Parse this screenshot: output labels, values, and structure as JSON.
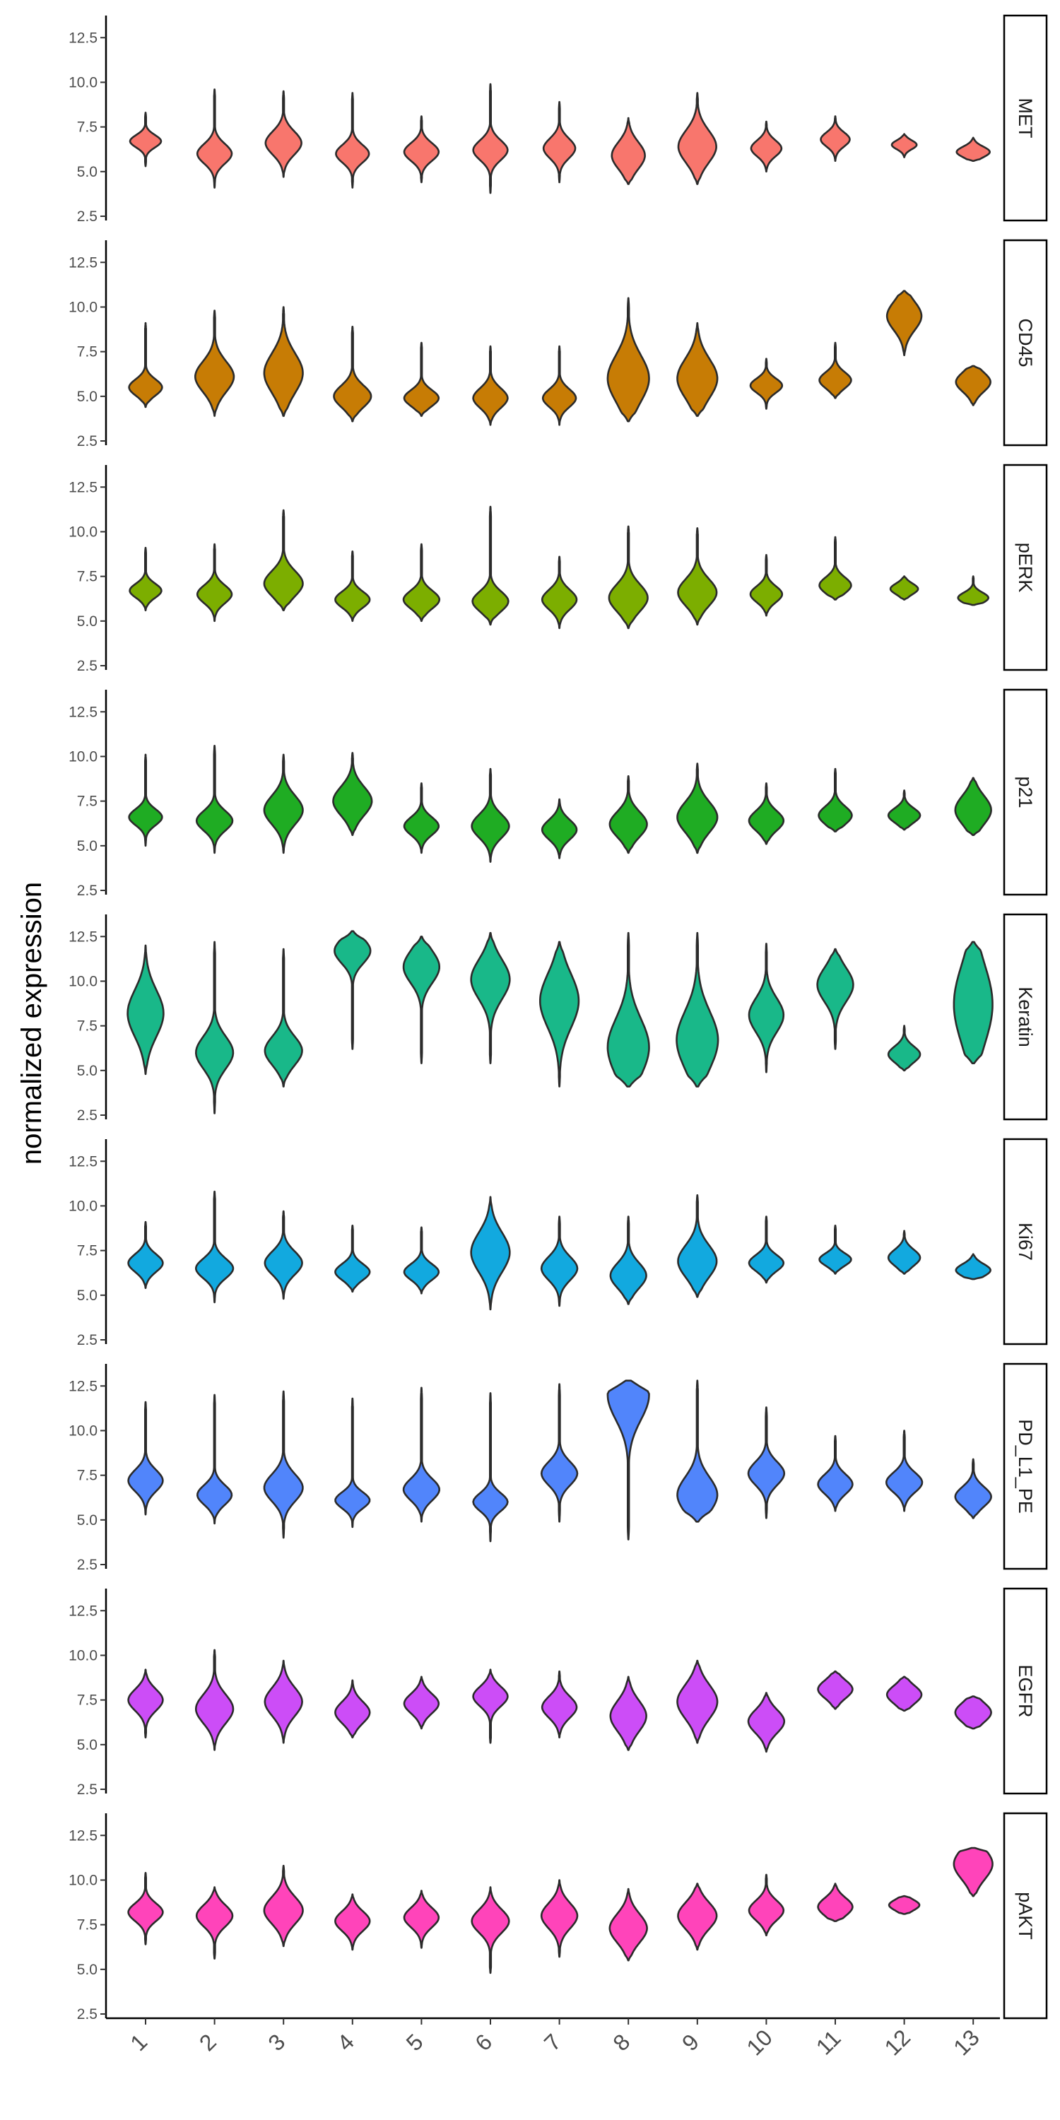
{
  "chart_data": {
    "type": "violin",
    "ylabel": "normalized expression",
    "ylim": [
      2.5,
      13.5
    ],
    "y_ticks": [
      "2.5",
      "5.0",
      "7.5",
      "10.0",
      "12.5"
    ],
    "categories": [
      "1",
      "2",
      "3",
      "4",
      "5",
      "6",
      "7",
      "8",
      "9",
      "10",
      "11",
      "12",
      "13"
    ],
    "panels": [
      {
        "name": "MET",
        "color": "#F8766D",
        "violins": [
          {
            "min": 5.3,
            "max": 8.3,
            "peak": 6.7,
            "width": 0.45,
            "spread": 0.35
          },
          {
            "min": 4.1,
            "max": 9.6,
            "peak": 6.0,
            "width": 0.5,
            "spread": 0.55
          },
          {
            "min": 4.7,
            "max": 9.5,
            "peak": 6.6,
            "width": 0.52,
            "spread": 0.65
          },
          {
            "min": 4.1,
            "max": 9.4,
            "peak": 6.0,
            "width": 0.48,
            "spread": 0.5
          },
          {
            "min": 4.4,
            "max": 8.1,
            "peak": 6.1,
            "width": 0.5,
            "spread": 0.5
          },
          {
            "min": 3.8,
            "max": 9.9,
            "peak": 6.2,
            "width": 0.5,
            "spread": 0.55
          },
          {
            "min": 4.4,
            "max": 8.9,
            "peak": 6.3,
            "width": 0.46,
            "spread": 0.55
          },
          {
            "min": 4.3,
            "max": 8.0,
            "peak": 5.9,
            "width": 0.48,
            "spread": 0.75
          },
          {
            "min": 4.3,
            "max": 9.4,
            "peak": 6.4,
            "width": 0.55,
            "spread": 0.9
          },
          {
            "min": 5.0,
            "max": 7.8,
            "peak": 6.3,
            "width": 0.44,
            "spread": 0.45
          },
          {
            "min": 5.6,
            "max": 8.1,
            "peak": 6.8,
            "width": 0.42,
            "spread": 0.4
          },
          {
            "min": 5.8,
            "max": 7.1,
            "peak": 6.5,
            "width": 0.36,
            "spread": 0.25
          },
          {
            "min": 5.6,
            "max": 6.9,
            "peak": 6.1,
            "width": 0.48,
            "spread": 0.3
          }
        ]
      },
      {
        "name": "CD45",
        "color": "#C77C05",
        "violins": [
          {
            "min": 4.4,
            "max": 9.1,
            "peak": 5.5,
            "width": 0.48,
            "spread": 0.45
          },
          {
            "min": 3.9,
            "max": 9.8,
            "peak": 6.1,
            "width": 0.56,
            "spread": 0.85
          },
          {
            "min": 3.9,
            "max": 10.0,
            "peak": 6.3,
            "width": 0.56,
            "spread": 1.1
          },
          {
            "min": 3.6,
            "max": 8.9,
            "peak": 5.0,
            "width": 0.54,
            "spread": 0.6
          },
          {
            "min": 3.9,
            "max": 8.0,
            "peak": 4.9,
            "width": 0.5,
            "spread": 0.45
          },
          {
            "min": 3.4,
            "max": 7.8,
            "peak": 4.9,
            "width": 0.5,
            "spread": 0.55
          },
          {
            "min": 3.4,
            "max": 7.8,
            "peak": 4.9,
            "width": 0.48,
            "spread": 0.5
          },
          {
            "min": 3.6,
            "max": 10.5,
            "peak": 6.0,
            "width": 0.6,
            "spread": 1.3
          },
          {
            "min": 3.9,
            "max": 9.1,
            "peak": 6.0,
            "width": 0.58,
            "spread": 1.1
          },
          {
            "min": 4.3,
            "max": 7.1,
            "peak": 5.6,
            "width": 0.46,
            "spread": 0.4
          },
          {
            "min": 4.9,
            "max": 8.0,
            "peak": 5.9,
            "width": 0.46,
            "spread": 0.45
          },
          {
            "min": 7.3,
            "max": 10.9,
            "peak": 9.5,
            "width": 0.5,
            "spread": 0.8
          },
          {
            "min": 4.5,
            "max": 6.7,
            "peak": 5.8,
            "width": 0.5,
            "spread": 0.55
          }
        ]
      },
      {
        "name": "pERK",
        "color": "#7CAE00",
        "violins": [
          {
            "min": 5.6,
            "max": 9.1,
            "peak": 6.7,
            "width": 0.46,
            "spread": 0.4
          },
          {
            "min": 5.0,
            "max": 9.3,
            "peak": 6.5,
            "width": 0.5,
            "spread": 0.5
          },
          {
            "min": 5.6,
            "max": 11.2,
            "peak": 7.1,
            "width": 0.56,
            "spread": 0.7
          },
          {
            "min": 5.0,
            "max": 8.9,
            "peak": 6.2,
            "width": 0.5,
            "spread": 0.45
          },
          {
            "min": 5.0,
            "max": 9.3,
            "peak": 6.2,
            "width": 0.52,
            "spread": 0.5
          },
          {
            "min": 4.8,
            "max": 11.4,
            "peak": 6.1,
            "width": 0.52,
            "spread": 0.55
          },
          {
            "min": 4.6,
            "max": 8.6,
            "peak": 6.2,
            "width": 0.5,
            "spread": 0.55
          },
          {
            "min": 4.6,
            "max": 10.3,
            "peak": 6.3,
            "width": 0.56,
            "spread": 0.75
          },
          {
            "min": 4.8,
            "max": 10.2,
            "peak": 6.6,
            "width": 0.56,
            "spread": 0.75
          },
          {
            "min": 5.3,
            "max": 8.7,
            "peak": 6.5,
            "width": 0.46,
            "spread": 0.45
          },
          {
            "min": 6.2,
            "max": 9.7,
            "peak": 7.0,
            "width": 0.46,
            "spread": 0.45
          },
          {
            "min": 6.2,
            "max": 7.5,
            "peak": 6.8,
            "width": 0.4,
            "spread": 0.3
          },
          {
            "min": 5.9,
            "max": 7.5,
            "peak": 6.3,
            "width": 0.44,
            "spread": 0.3
          }
        ]
      },
      {
        "name": "p21",
        "color": "#1FAC23",
        "violins": [
          {
            "min": 5.0,
            "max": 10.1,
            "peak": 6.6,
            "width": 0.48,
            "spread": 0.45
          },
          {
            "min": 4.6,
            "max": 10.6,
            "peak": 6.4,
            "width": 0.52,
            "spread": 0.55
          },
          {
            "min": 4.6,
            "max": 10.1,
            "peak": 7.0,
            "width": 0.56,
            "spread": 0.8
          },
          {
            "min": 5.6,
            "max": 10.2,
            "peak": 7.5,
            "width": 0.56,
            "spread": 0.8
          },
          {
            "min": 4.6,
            "max": 8.5,
            "peak": 6.1,
            "width": 0.5,
            "spread": 0.5
          },
          {
            "min": 4.1,
            "max": 9.3,
            "peak": 6.1,
            "width": 0.54,
            "spread": 0.65
          },
          {
            "min": 4.3,
            "max": 7.6,
            "peak": 5.9,
            "width": 0.5,
            "spread": 0.55
          },
          {
            "min": 4.6,
            "max": 8.9,
            "peak": 6.2,
            "width": 0.54,
            "spread": 0.7
          },
          {
            "min": 4.6,
            "max": 9.6,
            "peak": 6.6,
            "width": 0.58,
            "spread": 0.85
          },
          {
            "min": 5.1,
            "max": 8.5,
            "peak": 6.4,
            "width": 0.5,
            "spread": 0.55
          },
          {
            "min": 5.8,
            "max": 9.3,
            "peak": 6.7,
            "width": 0.48,
            "spread": 0.5
          },
          {
            "min": 5.9,
            "max": 8.1,
            "peak": 6.7,
            "width": 0.46,
            "spread": 0.4
          },
          {
            "min": 5.6,
            "max": 8.8,
            "peak": 7.0,
            "width": 0.52,
            "spread": 0.8
          }
        ]
      },
      {
        "name": "Keratin",
        "color": "#19B889",
        "violins": [
          {
            "min": 4.8,
            "max": 12.0,
            "peak": 8.2,
            "width": 0.52,
            "spread": 1.3
          },
          {
            "min": 2.6,
            "max": 12.2,
            "peak": 6.0,
            "width": 0.54,
            "spread": 0.9
          },
          {
            "min": 4.1,
            "max": 11.8,
            "peak": 6.1,
            "width": 0.54,
            "spread": 0.8
          },
          {
            "min": 6.2,
            "max": 12.8,
            "peak": 11.7,
            "width": 0.52,
            "spread": 0.7
          },
          {
            "min": 5.4,
            "max": 12.5,
            "peak": 10.8,
            "width": 0.52,
            "spread": 0.9
          },
          {
            "min": 5.4,
            "max": 12.7,
            "peak": 10.1,
            "width": 0.56,
            "spread": 1.1
          },
          {
            "min": 4.1,
            "max": 12.2,
            "peak": 8.9,
            "width": 0.56,
            "spread": 1.5
          },
          {
            "min": 4.1,
            "max": 12.7,
            "peak": 6.3,
            "width": 0.6,
            "spread": 1.6
          },
          {
            "min": 4.1,
            "max": 12.7,
            "peak": 6.7,
            "width": 0.6,
            "spread": 1.6
          },
          {
            "min": 4.9,
            "max": 12.1,
            "peak": 8.1,
            "width": 0.5,
            "spread": 0.95
          },
          {
            "min": 6.2,
            "max": 11.8,
            "peak": 9.8,
            "width": 0.52,
            "spread": 0.95
          },
          {
            "min": 5.0,
            "max": 7.5,
            "peak": 5.9,
            "width": 0.46,
            "spread": 0.45
          },
          {
            "min": 5.4,
            "max": 12.2,
            "peak": 8.7,
            "width": 0.56,
            "spread": 2.2
          }
        ]
      },
      {
        "name": "Ki67",
        "color": "#12A9DF",
        "violins": [
          {
            "min": 5.4,
            "max": 9.1,
            "peak": 6.8,
            "width": 0.5,
            "spread": 0.5
          },
          {
            "min": 4.6,
            "max": 10.8,
            "peak": 6.5,
            "width": 0.54,
            "spread": 0.55
          },
          {
            "min": 4.8,
            "max": 9.7,
            "peak": 6.8,
            "width": 0.54,
            "spread": 0.65
          },
          {
            "min": 5.2,
            "max": 8.9,
            "peak": 6.3,
            "width": 0.5,
            "spread": 0.45
          },
          {
            "min": 5.1,
            "max": 8.8,
            "peak": 6.3,
            "width": 0.5,
            "spread": 0.45
          },
          {
            "min": 4.2,
            "max": 10.5,
            "peak": 7.4,
            "width": 0.56,
            "spread": 1.1
          },
          {
            "min": 4.4,
            "max": 9.4,
            "peak": 6.5,
            "width": 0.52,
            "spread": 0.65
          },
          {
            "min": 4.5,
            "max": 9.4,
            "peak": 6.1,
            "width": 0.52,
            "spread": 0.7
          },
          {
            "min": 4.9,
            "max": 10.6,
            "peak": 6.9,
            "width": 0.56,
            "spread": 0.9
          },
          {
            "min": 5.7,
            "max": 9.4,
            "peak": 6.8,
            "width": 0.5,
            "spread": 0.45
          },
          {
            "min": 6.2,
            "max": 8.9,
            "peak": 7.0,
            "width": 0.46,
            "spread": 0.35
          },
          {
            "min": 6.2,
            "max": 8.6,
            "peak": 7.1,
            "width": 0.46,
            "spread": 0.45
          },
          {
            "min": 5.9,
            "max": 7.3,
            "peak": 6.4,
            "width": 0.5,
            "spread": 0.35
          }
        ]
      },
      {
        "name": "PD_L1_PE",
        "color": "#5185FB",
        "violins": [
          {
            "min": 5.3,
            "max": 11.6,
            "peak": 7.2,
            "width": 0.5,
            "spread": 0.6
          },
          {
            "min": 4.8,
            "max": 12.0,
            "peak": 6.4,
            "width": 0.5,
            "spread": 0.55
          },
          {
            "min": 4.0,
            "max": 12.2,
            "peak": 6.8,
            "width": 0.56,
            "spread": 0.75
          },
          {
            "min": 4.6,
            "max": 11.8,
            "peak": 6.1,
            "width": 0.5,
            "spread": 0.45
          },
          {
            "min": 4.9,
            "max": 12.4,
            "peak": 6.7,
            "width": 0.52,
            "spread": 0.6
          },
          {
            "min": 3.8,
            "max": 12.1,
            "peak": 6.0,
            "width": 0.5,
            "spread": 0.5
          },
          {
            "min": 4.9,
            "max": 12.6,
            "peak": 7.6,
            "width": 0.52,
            "spread": 0.65
          },
          {
            "min": 3.9,
            "max": 12.8,
            "peak": 12.0,
            "width": 0.6,
            "spread": 1.4
          },
          {
            "min": 4.9,
            "max": 12.8,
            "peak": 6.4,
            "width": 0.58,
            "spread": 1.0
          },
          {
            "min": 5.1,
            "max": 11.3,
            "peak": 7.6,
            "width": 0.52,
            "spread": 0.65
          },
          {
            "min": 5.5,
            "max": 9.7,
            "peak": 7.0,
            "width": 0.5,
            "spread": 0.55
          },
          {
            "min": 5.5,
            "max": 10.0,
            "peak": 7.1,
            "width": 0.52,
            "spread": 0.55
          },
          {
            "min": 5.1,
            "max": 8.4,
            "peak": 6.3,
            "width": 0.52,
            "spread": 0.55
          }
        ]
      },
      {
        "name": "EGFR",
        "color": "#CC4DF7",
        "violins": [
          {
            "min": 5.4,
            "max": 9.2,
            "peak": 7.5,
            "width": 0.5,
            "spread": 0.6
          },
          {
            "min": 4.7,
            "max": 10.3,
            "peak": 7.0,
            "width": 0.54,
            "spread": 0.8
          },
          {
            "min": 5.1,
            "max": 9.7,
            "peak": 7.4,
            "width": 0.54,
            "spread": 0.8
          },
          {
            "min": 5.4,
            "max": 8.6,
            "peak": 6.8,
            "width": 0.5,
            "spread": 0.6
          },
          {
            "min": 5.9,
            "max": 8.8,
            "peak": 7.3,
            "width": 0.5,
            "spread": 0.55
          },
          {
            "min": 5.1,
            "max": 9.2,
            "peak": 7.7,
            "width": 0.5,
            "spread": 0.55
          },
          {
            "min": 5.4,
            "max": 9.1,
            "peak": 7.1,
            "width": 0.5,
            "spread": 0.6
          },
          {
            "min": 4.7,
            "max": 8.8,
            "peak": 6.6,
            "width": 0.52,
            "spread": 0.85
          },
          {
            "min": 5.1,
            "max": 9.7,
            "peak": 7.4,
            "width": 0.58,
            "spread": 0.95
          },
          {
            "min": 4.6,
            "max": 7.9,
            "peak": 6.3,
            "width": 0.52,
            "spread": 0.65
          },
          {
            "min": 7.0,
            "max": 9.1,
            "peak": 8.1,
            "width": 0.5,
            "spread": 0.5
          },
          {
            "min": 6.9,
            "max": 8.8,
            "peak": 7.8,
            "width": 0.5,
            "spread": 0.5
          },
          {
            "min": 5.9,
            "max": 7.7,
            "peak": 6.8,
            "width": 0.52,
            "spread": 0.55
          }
        ]
      },
      {
        "name": "pAKT",
        "color": "#FF44BA",
        "violins": [
          {
            "min": 6.4,
            "max": 10.4,
            "peak": 8.2,
            "width": 0.5,
            "spread": 0.5
          },
          {
            "min": 5.6,
            "max": 9.6,
            "peak": 8.0,
            "width": 0.52,
            "spread": 0.6
          },
          {
            "min": 6.3,
            "max": 10.8,
            "peak": 8.3,
            "width": 0.56,
            "spread": 0.75
          },
          {
            "min": 6.1,
            "max": 9.2,
            "peak": 7.7,
            "width": 0.5,
            "spread": 0.55
          },
          {
            "min": 6.2,
            "max": 9.4,
            "peak": 7.9,
            "width": 0.5,
            "spread": 0.55
          },
          {
            "min": 4.8,
            "max": 9.6,
            "peak": 7.7,
            "width": 0.54,
            "spread": 0.65
          },
          {
            "min": 5.7,
            "max": 10.0,
            "peak": 8.0,
            "width": 0.52,
            "spread": 0.7
          },
          {
            "min": 5.5,
            "max": 9.5,
            "peak": 7.3,
            "width": 0.54,
            "spread": 0.8
          },
          {
            "min": 6.1,
            "max": 9.8,
            "peak": 8.0,
            "width": 0.56,
            "spread": 0.75
          },
          {
            "min": 6.9,
            "max": 10.3,
            "peak": 8.3,
            "width": 0.5,
            "spread": 0.55
          },
          {
            "min": 7.7,
            "max": 9.8,
            "peak": 8.5,
            "width": 0.5,
            "spread": 0.5
          },
          {
            "min": 8.1,
            "max": 9.1,
            "peak": 8.6,
            "width": 0.44,
            "spread": 0.3
          },
          {
            "min": 9.1,
            "max": 11.8,
            "peak": 10.9,
            "width": 0.56,
            "spread": 0.85
          }
        ]
      }
    ]
  }
}
